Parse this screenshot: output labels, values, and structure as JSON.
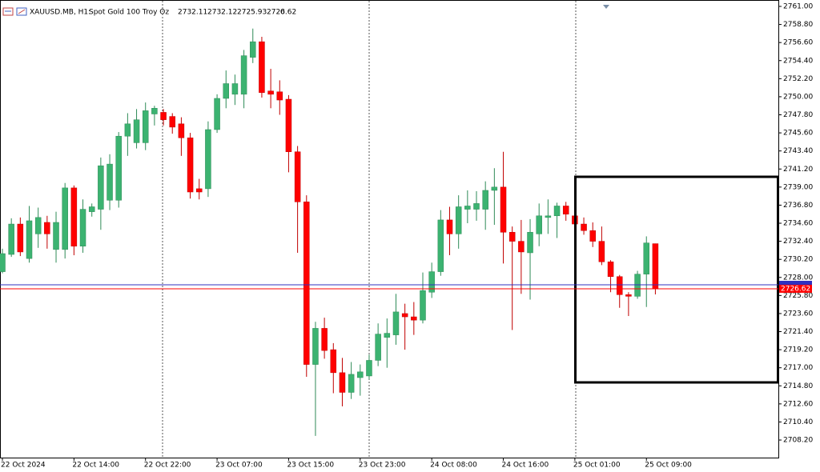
{
  "chart_data": {
    "type": "candlestick",
    "title": "XAUUSD.MB, H1:",
    "subtitle": "Spot Gold 100 Troy Oz",
    "header_extra": "0",
    "categories": [
      "22 Oct 2024",
      null,
      null,
      null,
      null,
      null,
      null,
      null,
      "22 Oct 14:00",
      null,
      null,
      null,
      null,
      null,
      null,
      null,
      "22 Oct 22:00",
      null,
      null,
      null,
      null,
      null,
      null,
      null,
      "23 Oct 07:00",
      null,
      null,
      null,
      null,
      null,
      null,
      null,
      "23 Oct 15:00",
      null,
      null,
      null,
      null,
      null,
      null,
      null,
      "23 Oct 23:00",
      null,
      null,
      null,
      null,
      null,
      null,
      null,
      "24 Oct 08:00",
      null,
      null,
      null,
      null,
      null,
      null,
      null,
      "24 Oct 16:00",
      null,
      null,
      null,
      null,
      null,
      null,
      null,
      "25 Oct 01:00",
      null,
      null,
      null,
      null,
      null,
      null,
      null,
      "25 Oct 09:00",
      null
    ],
    "open": [
      2728.7,
      2730.8,
      2734.5,
      2730.3,
      2733.3,
      2734.7,
      2731.4,
      2731.4,
      2738.9,
      2731.8,
      2736.0,
      2736.3,
      2737.4,
      2737.4,
      2745.2,
      2744.4,
      2744.4,
      2747.9,
      2748.1,
      2747.6,
      2746.7,
      2745.0,
      2738.8,
      2738.8,
      2746.0,
      2749.8,
      2750.3,
      2750.3,
      2754.8,
      2756.7,
      2750.7,
      2750.6,
      2749.7,
      2743.3,
      2737.2,
      2717.4,
      2721.8,
      2719.2,
      2716.4,
      2714.0,
      2715.8,
      2716.0,
      2717.9,
      2720.7,
      2721.0,
      2723.6,
      2723.2,
      2722.8,
      2726.2,
      2728.7,
      2735.0,
      2733.3,
      2736.3,
      2736.3,
      2736.3,
      2738.6,
      2739.0,
      2733.5,
      2732.4,
      2731.0,
      2733.3,
      2735.3,
      2735.5,
      2736.7,
      2735.5,
      2734.5,
      2733.7,
      2732.4,
      2729.9,
      2728.1,
      2725.9,
      2725.7,
      2728.4,
      2732.11
    ],
    "high": [
      2731.5,
      2735.2,
      2735.3,
      2736.7,
      2736.5,
      2735.5,
      2736.0,
      2739.5,
      2739.2,
      2737.5,
      2737.0,
      2742.6,
      2743.0,
      2745.7,
      2748.0,
      2748.5,
      2749.3,
      2748.9,
      2748.5,
      2748.0,
      2747.5,
      2745.6,
      2740.0,
      2747.0,
      2750.3,
      2753.2,
      2752.7,
      2755.7,
      2758.3,
      2757.3,
      2753.4,
      2752.0,
      2750.2,
      2744.0,
      2738.0,
      2722.6,
      2723.1,
      2720.0,
      2718.2,
      2717.7,
      2717.4,
      2718.6,
      2722.4,
      2723.0,
      2726.0,
      2724.8,
      2725.0,
      2728.6,
      2729.8,
      2736.2,
      2736.6,
      2738.0,
      2738.6,
      2738.5,
      2739.7,
      2741.3,
      2743.3,
      2734.2,
      2735.0,
      2735.1,
      2737.0,
      2737.5,
      2737.1,
      2737.2,
      2735.8,
      2735.3,
      2734.7,
      2734.2,
      2730.1,
      2728.3,
      2726.2,
      2728.8,
      2733.0,
      2732.12
    ],
    "low": [
      2728.5,
      2730.5,
      2730.6,
      2729.8,
      2731.6,
      2731.5,
      2729.8,
      2730.3,
      2730.7,
      2731.0,
      2735.4,
      2733.8,
      2736.2,
      2736.5,
      2742.8,
      2743.7,
      2743.5,
      2746.5,
      2746.5,
      2745.5,
      2742.8,
      2737.6,
      2737.5,
      2737.8,
      2745.6,
      2748.6,
      2749.0,
      2748.6,
      2754.1,
      2749.9,
      2748.6,
      2747.8,
      2740.8,
      2731.0,
      2715.9,
      2708.7,
      2718.1,
      2713.9,
      2712.3,
      2713.2,
      2713.6,
      2715.6,
      2717.2,
      2717.0,
      2719.8,
      2719.2,
      2721.0,
      2722.4,
      2725.5,
      2728.2,
      2730.7,
      2731.5,
      2734.6,
      2734.9,
      2733.8,
      2734.4,
      2729.7,
      2721.6,
      2726.0,
      2725.3,
      2731.8,
      2733.3,
      2732.8,
      2734.9,
      2733.6,
      2733.2,
      2731.7,
      2729.5,
      2726.2,
      2724.3,
      2723.3,
      2725.4,
      2724.4,
      2725.93
    ],
    "close": [
      2730.9,
      2734.5,
      2731.1,
      2734.9,
      2735.3,
      2733.3,
      2734.7,
      2738.9,
      2731.8,
      2736.3,
      2736.6,
      2741.6,
      2741.8,
      2745.2,
      2746.7,
      2747.2,
      2748.3,
      2748.6,
      2747.2,
      2746.3,
      2745.0,
      2738.4,
      2738.4,
      2746.0,
      2749.8,
      2751.6,
      2751.6,
      2755.0,
      2756.7,
      2750.5,
      2750.3,
      2749.6,
      2743.3,
      2737.2,
      2717.4,
      2721.8,
      2719.1,
      2716.4,
      2714.0,
      2716.2,
      2716.5,
      2717.9,
      2721.1,
      2721.2,
      2723.8,
      2723.2,
      2722.8,
      2726.4,
      2728.7,
      2735.0,
      2733.3,
      2736.6,
      2736.7,
      2737.0,
      2738.6,
      2739.0,
      2733.5,
      2732.4,
      2731.1,
      2733.5,
      2735.5,
      2735.5,
      2736.7,
      2735.7,
      2734.5,
      2733.7,
      2732.4,
      2729.9,
      2728.1,
      2725.9,
      2725.7,
      2728.4,
      2732.2,
      2726.62
    ],
    "up_color": "#3cb371",
    "down_color": "#ff0000",
    "bid": 2726.62,
    "bid_color": "#ff0000",
    "ask": 2727.1,
    "ask_color": "#3030c0",
    "ylim": [
      2706.06,
      2761.78
    ],
    "yticks": [
      {
        "value": 2761.0,
        "label": "2761.00"
      },
      {
        "value": 2758.8,
        "label": "2758.80"
      },
      {
        "value": 2756.6,
        "label": "2756.60"
      },
      {
        "value": 2754.4,
        "label": "2754.40"
      },
      {
        "value": 2752.2,
        "label": "2752.20"
      },
      {
        "value": 2750.0,
        "label": "2750.00"
      },
      {
        "value": 2747.8,
        "label": "2747.80"
      },
      {
        "value": 2745.6,
        "label": "2745.60"
      },
      {
        "value": 2743.4,
        "label": "2743.40"
      },
      {
        "value": 2741.2,
        "label": "2741.20"
      },
      {
        "value": 2739.0,
        "label": "2739.00"
      },
      {
        "value": 2736.8,
        "label": "2736.80"
      },
      {
        "value": 2734.6,
        "label": "2734.60"
      },
      {
        "value": 2732.4,
        "label": "2732.40"
      },
      {
        "value": 2730.2,
        "label": "2730.20"
      },
      {
        "value": 2728.0,
        "label": "2728.00"
      },
      {
        "value": 2725.8,
        "label": "2725.80"
      },
      {
        "value": 2723.6,
        "label": "2723.60"
      },
      {
        "value": 2721.4,
        "label": "2721.40"
      },
      {
        "value": 2719.2,
        "label": "2719.20"
      },
      {
        "value": 2717.0,
        "label": "2717.00"
      },
      {
        "value": 2714.8,
        "label": "2714.80"
      },
      {
        "value": 2712.6,
        "label": "2712.60"
      },
      {
        "value": 2710.4,
        "label": "2710.40"
      },
      {
        "value": 2708.2,
        "label": "2708.20"
      }
    ],
    "grid": false
  }
}
